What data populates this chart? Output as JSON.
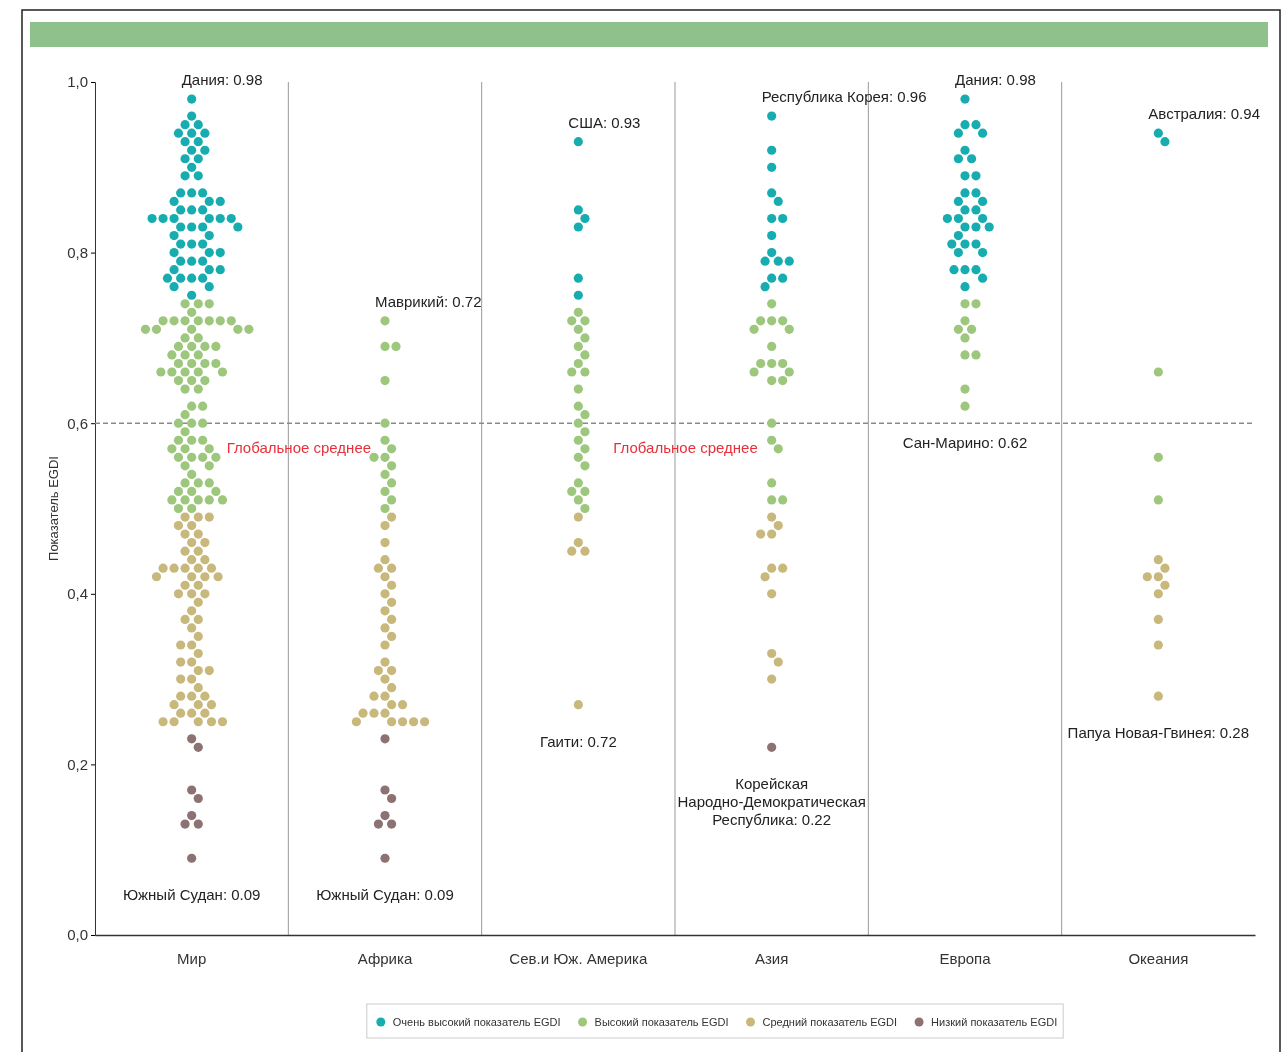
{
  "chart_data": {
    "type": "scatter",
    "ylabel": "Показатель EGDI",
    "categories": [
      "Мир",
      "Африка",
      "Сев.и Юж. Америка",
      "Азия",
      "Европа",
      "Океания"
    ],
    "ylim": [
      0,
      1
    ],
    "yticks": [
      {
        "value": 0,
        "label": "0,0"
      },
      {
        "value": 0.2,
        "label": "0,2"
      },
      {
        "value": 0.4,
        "label": "0,4"
      },
      {
        "value": 0.6,
        "label": "0,6"
      },
      {
        "value": 0.8,
        "label": "0,8"
      },
      {
        "value": 1,
        "label": "1,0"
      }
    ],
    "marker": "circle",
    "legend": "bottom",
    "grid": false,
    "ref_lines": [
      {
        "axis": "y",
        "value": 0.6,
        "label": "Глобальное среднее",
        "color": "#8a8a8a",
        "line_style": "dashed"
      }
    ],
    "series": [
      {
        "name": "Очень высокий показатель EGDI",
        "color": "#17adb0",
        "x": [
          "Мир",
          "Мир",
          "Мир",
          "Мир",
          "Мир",
          "Мир",
          "Мир",
          "Мир",
          "Мир",
          "Мир",
          "Мир",
          "Мир",
          "Мир",
          "Мир",
          "Мир",
          "Мир",
          "Мир",
          "Мир",
          "Мир",
          "Мир",
          "Мир",
          "Мир",
          "Мир",
          "Мир",
          "Мир",
          "Мир",
          "Мир",
          "Мир",
          "Мир",
          "Мир",
          "Мир",
          "Мир",
          "Мир",
          "Мир",
          "Мир",
          "Мир",
          "Мир",
          "Мир",
          "Мир",
          "Мир",
          "Мир",
          "Мир",
          "Мир",
          "Мир",
          "Мир",
          "Мир",
          "Мир",
          "Мир",
          "Мир",
          "Мир",
          "Мир",
          "Мир",
          "Мир",
          "Мир",
          "Мир",
          "Мир",
          "Сев.и Юж. Америка",
          "Сев.и Юж. Америка",
          "Сев.и Юж. Америка",
          "Сев.и Юж. Америка",
          "Сев.и Юж. Америка",
          "Сев.и Юж. Америка",
          "Азия",
          "Азия",
          "Азия",
          "Азия",
          "Азия",
          "Азия",
          "Азия",
          "Азия",
          "Азия",
          "Азия",
          "Азия",
          "Азия",
          "Азия",
          "Азия",
          "Азия",
          "Европа",
          "Европа",
          "Европа",
          "Европа",
          "Европа",
          "Европа",
          "Европа",
          "Европа",
          "Европа",
          "Европа",
          "Европа",
          "Европа",
          "Европа",
          "Европа",
          "Европа",
          "Европа",
          "Европа",
          "Европа",
          "Европа",
          "Европа",
          "Европа",
          "Европа",
          "Европа",
          "Европа",
          "Европа",
          "Европа",
          "Европа",
          "Европа",
          "Европа",
          "Европа",
          "Европа",
          "Европа",
          "Европа",
          "Океания",
          "Океания"
        ],
        "values": [
          0.93,
          0.85,
          0.84,
          0.83,
          0.77,
          0.75,
          0.96,
          0.92,
          0.9,
          0.87,
          0.86,
          0.84,
          0.84,
          0.82,
          0.8,
          0.79,
          0.79,
          0.79,
          0.77,
          0.77,
          0.76,
          0.98,
          0.95,
          0.95,
          0.94,
          0.94,
          0.92,
          0.91,
          0.91,
          0.89,
          0.89,
          0.87,
          0.87,
          0.86,
          0.86,
          0.85,
          0.85,
          0.84,
          0.84,
          0.84,
          0.83,
          0.83,
          0.83,
          0.82,
          0.81,
          0.81,
          0.81,
          0.8,
          0.8,
          0.78,
          0.78,
          0.78,
          0.77,
          0.76,
          0.94,
          0.93,
          0.93,
          0.85,
          0.84,
          0.83,
          0.77,
          0.75,
          0.96,
          0.92,
          0.9,
          0.87,
          0.86,
          0.84,
          0.84,
          0.82,
          0.8,
          0.79,
          0.79,
          0.79,
          0.77,
          0.77,
          0.76,
          0.98,
          0.95,
          0.95,
          0.94,
          0.94,
          0.92,
          0.91,
          0.91,
          0.89,
          0.89,
          0.87,
          0.87,
          0.86,
          0.86,
          0.85,
          0.85,
          0.84,
          0.84,
          0.84,
          0.83,
          0.83,
          0.83,
          0.82,
          0.81,
          0.81,
          0.81,
          0.8,
          0.8,
          0.78,
          0.78,
          0.78,
          0.77,
          0.76,
          0.94,
          0.93
        ]
      },
      {
        "name": "Высокий показатель EGDI",
        "color": "#9dc77c",
        "x": [
          "Мир",
          "Мир",
          "Мир",
          "Мир",
          "Мир",
          "Мир",
          "Мир",
          "Мир",
          "Мир",
          "Мир",
          "Мир",
          "Мир",
          "Мир",
          "Мир",
          "Мир",
          "Мир",
          "Мир",
          "Мир",
          "Мир",
          "Мир",
          "Мир",
          "Мир",
          "Мир",
          "Мир",
          "Мир",
          "Мир",
          "Мир",
          "Мир",
          "Мир",
          "Мир",
          "Мир",
          "Мир",
          "Мир",
          "Мир",
          "Мир",
          "Мир",
          "Мир",
          "Мир",
          "Мир",
          "Мир",
          "Мир",
          "Мир",
          "Мир",
          "Мир",
          "Мир",
          "Мир",
          "Мир",
          "Мир",
          "Мир",
          "Мир",
          "Мир",
          "Мир",
          "Мир",
          "Мир",
          "Мир",
          "Мир",
          "Мир",
          "Мир",
          "Мир",
          "Мир",
          "Мир",
          "Мир",
          "Мир",
          "Мир",
          "Мир",
          "Мир",
          "Мир",
          "Мир",
          "Мир",
          "Мир",
          "Мир",
          "Мир",
          "Африка",
          "Африка",
          "Африка",
          "Африка",
          "Африка",
          "Африка",
          "Африка",
          "Африка",
          "Африка",
          "Африка",
          "Африка",
          "Африка",
          "Африка",
          "Африка",
          "Африка",
          "Сев.и Юж. Америка",
          "Сев.и Юж. Америка",
          "Сев.и Юж. Америка",
          "Сев.и Юж. Америка",
          "Сев.и Юж. Америка",
          "Сев.и Юж. Америка",
          "Сев.и Юж. Америка",
          "Сев.и Юж. Америка",
          "Сев.и Юж. Америка",
          "Сев.и Юж. Америка",
          "Сев.и Юж. Америка",
          "Сев.и Юж. Америка",
          "Сев.и Юж. Америка",
          "Сев.и Юж. Америка",
          "Сев.и Юж. Америка",
          "Сев.и Юж. Америка",
          "Сев.и Юж. Америка",
          "Сев.и Юж. Америка",
          "Сев.и Юж. Америка",
          "Сев.и Юж. Америка",
          "Сев.и Юж. Америка",
          "Сев.и Юж. Америка",
          "Сев.и Юж. Америка",
          "Сев.и Юж. Америка",
          "Азия",
          "Азия",
          "Азия",
          "Азия",
          "Азия",
          "Азия",
          "Азия",
          "Азия",
          "Азия",
          "Азия",
          "Азия",
          "Азия",
          "Азия",
          "Азия",
          "Азия",
          "Азия",
          "Азия",
          "Азия",
          "Азия",
          "Азия",
          "Европа",
          "Европа",
          "Европа",
          "Европа",
          "Европа",
          "Европа",
          "Европа",
          "Европа",
          "Европа",
          "Европа",
          "Океания",
          "Океания",
          "Океания"
        ],
        "values": [
          0.72,
          0.69,
          0.69,
          0.65,
          0.6,
          0.58,
          0.57,
          0.56,
          0.56,
          0.55,
          0.54,
          0.53,
          0.52,
          0.51,
          0.5,
          0.73,
          0.72,
          0.72,
          0.71,
          0.7,
          0.69,
          0.68,
          0.67,
          0.66,
          0.66,
          0.64,
          0.62,
          0.61,
          0.6,
          0.59,
          0.58,
          0.57,
          0.56,
          0.55,
          0.53,
          0.52,
          0.52,
          0.51,
          0.5,
          0.74,
          0.72,
          0.72,
          0.72,
          0.71,
          0.71,
          0.69,
          0.67,
          0.67,
          0.67,
          0.66,
          0.66,
          0.65,
          0.65,
          0.6,
          0.58,
          0.57,
          0.53,
          0.51,
          0.51,
          0.74,
          0.74,
          0.72,
          0.71,
          0.71,
          0.7,
          0.68,
          0.68,
          0.64,
          0.62,
          0.66,
          0.56,
          0.51,
          0.72,
          0.69,
          0.69,
          0.65,
          0.6,
          0.58,
          0.57,
          0.56,
          0.56,
          0.55,
          0.54,
          0.53,
          0.52,
          0.51,
          0.5,
          0.73,
          0.72,
          0.72,
          0.71,
          0.7,
          0.69,
          0.68,
          0.67,
          0.66,
          0.66,
          0.64,
          0.62,
          0.61,
          0.6,
          0.59,
          0.58,
          0.57,
          0.56,
          0.55,
          0.53,
          0.52,
          0.52,
          0.51,
          0.5,
          0.74,
          0.72,
          0.72,
          0.72,
          0.71,
          0.71,
          0.69,
          0.67,
          0.67,
          0.67,
          0.66,
          0.66,
          0.65,
          0.65,
          0.6,
          0.58,
          0.57,
          0.53,
          0.51,
          0.51,
          0.74,
          0.74,
          0.72,
          0.71,
          0.71,
          0.7,
          0.68,
          0.68,
          0.64,
          0.62,
          0.66,
          0.56,
          0.51
        ]
      },
      {
        "name": "Средний показатель EGDI",
        "color": "#c8b87c",
        "x": [
          "Мир",
          "Мир",
          "Мир",
          "Мир",
          "Мир",
          "Мир",
          "Мир",
          "Мир",
          "Мир",
          "Мир",
          "Мир",
          "Мир",
          "Мир",
          "Мир",
          "Мир",
          "Мир",
          "Мир",
          "Мир",
          "Мир",
          "Мир",
          "Мир",
          "Мир",
          "Мир",
          "Мир",
          "Мир",
          "Мир",
          "Мир",
          "Мир",
          "Мир",
          "Мир",
          "Мир",
          "Мир",
          "Мир",
          "Мир",
          "Мир",
          "Мир",
          "Мир",
          "Мир",
          "Мир",
          "Мир",
          "Мир",
          "Мир",
          "Мир",
          "Мир",
          "Мир",
          "Мир",
          "Мир",
          "Мир",
          "Мир",
          "Мир",
          "Мир",
          "Мир",
          "Мир",
          "Мир",
          "Мир",
          "Мир",
          "Мир",
          "Африка",
          "Африка",
          "Африка",
          "Африка",
          "Африка",
          "Африка",
          "Африка",
          "Африка",
          "Африка",
          "Африка",
          "Африка",
          "Африка",
          "Африка",
          "Африка",
          "Африка",
          "Африка",
          "Африка",
          "Африка",
          "Африка",
          "Африка",
          "Африка",
          "Африка",
          "Африка",
          "Африка",
          "Африка",
          "Африка",
          "Африка",
          "Африка",
          "Африка",
          "Африка",
          "Африка",
          "Африка",
          "Сев.и Юж. Америка",
          "Сев.и Юж. Америка",
          "Сев.и Юж. Америка",
          "Сев.и Юж. Америка",
          "Сев.и Юж. Америка",
          "Азия",
          "Азия",
          "Азия",
          "Азия",
          "Азия",
          "Азия",
          "Азия",
          "Азия",
          "Азия",
          "Азия",
          "Азия",
          "Океания",
          "Океания",
          "Океания",
          "Океания",
          "Океания",
          "Океания",
          "Океания",
          "Океания",
          "Океания"
        ],
        "values": [
          0.49,
          0.48,
          0.46,
          0.44,
          0.43,
          0.43,
          0.42,
          0.41,
          0.4,
          0.39,
          0.38,
          0.37,
          0.36,
          0.35,
          0.34,
          0.32,
          0.31,
          0.31,
          0.3,
          0.29,
          0.28,
          0.28,
          0.27,
          0.27,
          0.26,
          0.26,
          0.26,
          0.25,
          0.25,
          0.25,
          0.25,
          0.25,
          0.49,
          0.46,
          0.45,
          0.45,
          0.27,
          0.49,
          0.48,
          0.47,
          0.47,
          0.43,
          0.43,
          0.42,
          0.4,
          0.33,
          0.32,
          0.3,
          0.44,
          0.43,
          0.42,
          0.42,
          0.41,
          0.4,
          0.37,
          0.34,
          0.28,
          0.49,
          0.48,
          0.46,
          0.44,
          0.43,
          0.43,
          0.42,
          0.41,
          0.4,
          0.39,
          0.38,
          0.37,
          0.36,
          0.35,
          0.34,
          0.32,
          0.31,
          0.31,
          0.3,
          0.29,
          0.28,
          0.28,
          0.27,
          0.27,
          0.26,
          0.26,
          0.26,
          0.25,
          0.25,
          0.25,
          0.25,
          0.25,
          0.49,
          0.46,
          0.45,
          0.45,
          0.27,
          0.49,
          0.48,
          0.47,
          0.47,
          0.43,
          0.43,
          0.42,
          0.4,
          0.33,
          0.32,
          0.3,
          0.44,
          0.43,
          0.42,
          0.42,
          0.41,
          0.4,
          0.37,
          0.34,
          0.28
        ]
      },
      {
        "name": "Низкий показатель EGDI",
        "color": "#8c7272",
        "x": [
          "Мир",
          "Мир",
          "Мир",
          "Мир",
          "Мир",
          "Мир",
          "Мир",
          "Мир",
          "Африка",
          "Африка",
          "Африка",
          "Африка",
          "Африка",
          "Африка",
          "Африка",
          "Азия"
        ],
        "values": [
          0.23,
          0.17,
          0.16,
          0.14,
          0.13,
          0.13,
          0.09,
          0.22,
          0.23,
          0.17,
          0.16,
          0.14,
          0.13,
          0.13,
          0.09,
          0.22
        ]
      }
    ],
    "annotations": [
      {
        "text": "Дания: 0.98",
        "x": "Мир",
        "y": 0.98
      },
      {
        "text": "Южный Судан: 0.09",
        "x": "Мир",
        "y": 0.09
      },
      {
        "text": "Маврикий: 0.72",
        "x": "Африка",
        "y": 0.72
      },
      {
        "text": "Южный Судан: 0.09",
        "x": "Африка",
        "y": 0.09
      },
      {
        "text": "США: 0.93",
        "x": "Сев.и Юж. Америка",
        "y": 0.93
      },
      {
        "text": "Гаити: 0.72",
        "x": "Сев.и Юж. Америка",
        "y": 0.27
      },
      {
        "text": "Республика Корея: 0.96",
        "x": "Азия",
        "y": 0.96
      },
      {
        "text": "Корейская Народно-Демократическая Республика: 0.22",
        "x": "Азия",
        "y": 0.22
      },
      {
        "text": "Дания: 0.98",
        "x": "Европа",
        "y": 0.98
      },
      {
        "text": "Сан-Марино: 0.62",
        "x": "Европа",
        "y": 0.62
      },
      {
        "text": "Австралия: 0.94",
        "x": "Океания",
        "y": 0.94
      },
      {
        "text": "Папуа Новая-Гвинея: 0.28",
        "x": "Океания",
        "y": 0.28
      }
    ]
  }
}
